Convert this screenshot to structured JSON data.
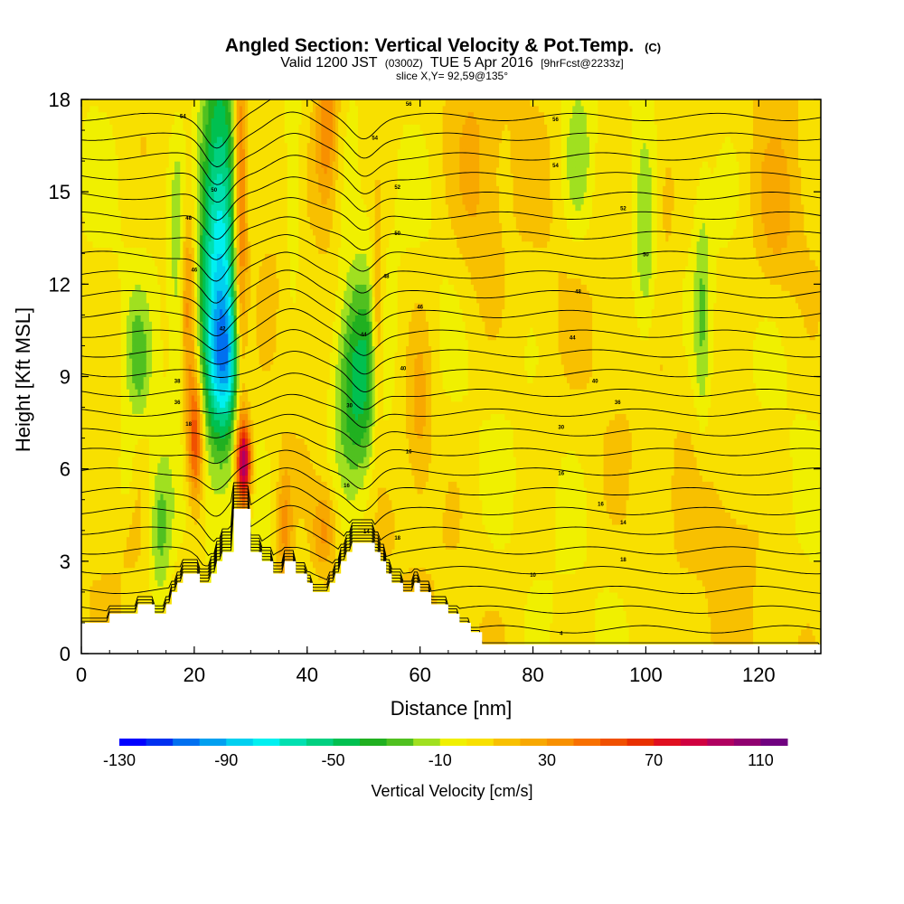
{
  "chart_data": {
    "type": "heatmap",
    "title": "Angled Section: Vertical Velocity & Pot.Temp.",
    "title_unit": "(C)",
    "subtitle_prefix": "Valid 1200 JST",
    "subtitle_utc": "(0300Z)",
    "subtitle_date": "TUE 5 Apr 2016",
    "subtitle_fcst": "[9hrFcst@2233z]",
    "slice_label": "slice X,Y= 92,59@135°",
    "xlabel": "Distance [nm]",
    "ylabel": "Height [Kft MSL]",
    "xlim": [
      0,
      131
    ],
    "ylim": [
      0,
      18
    ],
    "x_ticks": [
      "0",
      "20",
      "40",
      "60",
      "80",
      "100",
      "120"
    ],
    "y_ticks": [
      "0",
      "3",
      "6",
      "9",
      "12",
      "15",
      "18"
    ],
    "colorbar": {
      "label": "Vertical Velocity [cm/s]",
      "tick_labels": [
        "-130",
        "-90",
        "-50",
        "-10",
        "30",
        "70",
        "110"
      ],
      "min": -130,
      "max": 120,
      "step": 10,
      "colors": [
        "#0000ff",
        "#0030f0",
        "#0070f0",
        "#00a0f0",
        "#00d0f0",
        "#00f0f0",
        "#00e0b0",
        "#00d080",
        "#00c050",
        "#20b020",
        "#50c020",
        "#a0e020",
        "#f0f000",
        "#f8e000",
        "#f8c000",
        "#f8a800",
        "#f89000",
        "#f87000",
        "#f05000",
        "#e83000",
        "#e01020",
        "#d00040",
        "#b00060",
        "#900070",
        "#700080"
      ]
    },
    "terrain_kft": [
      [
        0,
        1.0
      ],
      [
        5,
        1.0
      ],
      [
        5,
        1.3
      ],
      [
        10,
        1.3
      ],
      [
        10,
        1.6
      ],
      [
        13,
        1.6
      ],
      [
        13,
        1.3
      ],
      [
        15,
        1.3
      ],
      [
        15,
        1.6
      ],
      [
        16,
        1.6
      ],
      [
        16,
        2.0
      ],
      [
        17,
        2.0
      ],
      [
        17,
        2.3
      ],
      [
        18,
        2.3
      ],
      [
        18,
        2.6
      ],
      [
        21,
        2.6
      ],
      [
        21,
        2.3
      ],
      [
        23,
        2.3
      ],
      [
        23,
        2.6
      ],
      [
        24,
        2.6
      ],
      [
        24,
        3.0
      ],
      [
        25,
        3.0
      ],
      [
        25,
        3.3
      ],
      [
        27,
        3.3
      ],
      [
        27,
        4.7
      ],
      [
        30,
        4.7
      ],
      [
        30,
        3.3
      ],
      [
        32,
        3.3
      ],
      [
        32,
        3.0
      ],
      [
        34,
        3.0
      ],
      [
        34,
        2.6
      ],
      [
        36,
        2.6
      ],
      [
        36,
        3.0
      ],
      [
        38,
        3.0
      ],
      [
        38,
        2.6
      ],
      [
        40,
        2.6
      ],
      [
        40,
        2.3
      ],
      [
        41,
        2.3
      ],
      [
        41,
        2.0
      ],
      [
        44,
        2.0
      ],
      [
        44,
        2.3
      ],
      [
        45,
        2.3
      ],
      [
        45,
        2.6
      ],
      [
        46,
        2.6
      ],
      [
        46,
        3.0
      ],
      [
        47,
        3.0
      ],
      [
        47,
        3.3
      ],
      [
        48,
        3.3
      ],
      [
        48,
        3.6
      ],
      [
        52,
        3.6
      ],
      [
        52,
        3.3
      ],
      [
        53,
        3.3
      ],
      [
        53,
        3.0
      ],
      [
        54,
        3.0
      ],
      [
        54,
        2.6
      ],
      [
        55,
        2.6
      ],
      [
        55,
        2.3
      ],
      [
        57,
        2.3
      ],
      [
        57,
        2.0
      ],
      [
        59,
        2.0
      ],
      [
        59,
        2.3
      ],
      [
        60,
        2.3
      ],
      [
        60,
        2.0
      ],
      [
        62,
        2.0
      ],
      [
        62,
        1.6
      ],
      [
        65,
        1.6
      ],
      [
        65,
        1.3
      ],
      [
        67,
        1.3
      ],
      [
        67,
        1.0
      ],
      [
        69,
        1.0
      ],
      [
        69,
        0.7
      ],
      [
        71,
        0.7
      ],
      [
        71,
        0.3
      ],
      [
        131,
        0.3
      ],
      [
        131,
        0
      ]
    ],
    "velocity_features": [
      {
        "x": 24.5,
        "z": 13.5,
        "sx": 2.6,
        "sz": 4.5,
        "w": -85
      },
      {
        "x": 25.5,
        "z": 9.5,
        "sx": 2.0,
        "sz": 1.5,
        "w": -50
      },
      {
        "x": 28.2,
        "z": 14.0,
        "sx": 0.9,
        "sz": 5.0,
        "w": 55
      },
      {
        "x": 28.8,
        "z": 6.2,
        "sx": 0.9,
        "sz": 1.0,
        "w": 95
      },
      {
        "x": 20.2,
        "z": 7.0,
        "sx": 1.0,
        "sz": 1.5,
        "w": 60
      },
      {
        "x": 19.0,
        "z": 11.5,
        "sx": 1.0,
        "sz": 2.5,
        "w": 35
      },
      {
        "x": 49.0,
        "z": 8.8,
        "sx": 3.0,
        "sz": 2.5,
        "w": -55
      },
      {
        "x": 52.5,
        "z": 10.5,
        "sx": 0.8,
        "sz": 2.5,
        "w": 35
      },
      {
        "x": 43.5,
        "z": 17.0,
        "sx": 1.5,
        "sz": 2.0,
        "w": 40
      },
      {
        "x": 43.0,
        "z": 4.0,
        "sx": 1.5,
        "sz": 1.0,
        "w": 30
      },
      {
        "x": 14.0,
        "z": 4.0,
        "sx": 1.5,
        "sz": 1.8,
        "w": -30
      },
      {
        "x": 10.0,
        "z": 9.5,
        "sx": 1.5,
        "sz": 1.5,
        "w": -25
      },
      {
        "x": 8.0,
        "z": 6.0,
        "sx": 1.0,
        "sz": 1.0,
        "w": -15
      },
      {
        "x": 17.0,
        "z": 13.0,
        "sx": 1.0,
        "sz": 3.0,
        "w": -20
      },
      {
        "x": 37.5,
        "z": 15.5,
        "sx": 1.0,
        "sz": 2.5,
        "w": -20
      },
      {
        "x": 100.0,
        "z": 13.0,
        "sx": 1.5,
        "sz": 2.5,
        "w": -25
      },
      {
        "x": 110.0,
        "z": 11.0,
        "sx": 1.0,
        "sz": 3.0,
        "w": -20
      },
      {
        "x": 88.0,
        "z": 16.0,
        "sx": 2.0,
        "sz": 2.0,
        "w": -20
      },
      {
        "x": 70.0,
        "z": 15.0,
        "sx": 3.0,
        "sz": 3.0,
        "w": 15
      },
      {
        "x": 103.0,
        "z": 15.0,
        "sx": 2.0,
        "sz": 2.0,
        "w": 15
      },
      {
        "x": 60.0,
        "z": 8.0,
        "sx": 1.5,
        "sz": 2.0,
        "w": 20
      },
      {
        "x": 36.0,
        "z": 4.0,
        "sx": 1.0,
        "sz": 1.5,
        "w": 30
      },
      {
        "x": 123.0,
        "z": 14.0,
        "sx": 3.0,
        "sz": 2.0,
        "w": 18
      },
      {
        "x": 115.0,
        "z": 4.0,
        "sx": 3.0,
        "sz": 2.0,
        "w": 8
      }
    ],
    "theta_contours_C": [
      4,
      6,
      8,
      10,
      12,
      14,
      16,
      18,
      20,
      22,
      24,
      26,
      28,
      30,
      32,
      34,
      36,
      38,
      40,
      42,
      44,
      46,
      48,
      50,
      52,
      54,
      56,
      58
    ],
    "contour_labels": [
      {
        "x": 18.0,
        "z": 17.4,
        "text": "54"
      },
      {
        "x": 58.0,
        "z": 17.8,
        "text": "56"
      },
      {
        "x": 52.0,
        "z": 16.7,
        "text": "54"
      },
      {
        "x": 84.0,
        "z": 17.3,
        "text": "56"
      },
      {
        "x": 84.0,
        "z": 15.8,
        "text": "54"
      },
      {
        "x": 23.5,
        "z": 15.0,
        "text": "50"
      },
      {
        "x": 56.0,
        "z": 15.1,
        "text": "52"
      },
      {
        "x": 19.0,
        "z": 14.1,
        "text": "48"
      },
      {
        "x": 96.0,
        "z": 14.4,
        "text": "52"
      },
      {
        "x": 56.0,
        "z": 13.6,
        "text": "50"
      },
      {
        "x": 100.0,
        "z": 12.9,
        "text": "50"
      },
      {
        "x": 20.0,
        "z": 12.4,
        "text": "46"
      },
      {
        "x": 54.0,
        "z": 12.2,
        "text": "48"
      },
      {
        "x": 88.0,
        "z": 11.7,
        "text": "48"
      },
      {
        "x": 60.0,
        "z": 11.2,
        "text": "46"
      },
      {
        "x": 25.0,
        "z": 10.5,
        "text": "42"
      },
      {
        "x": 50.0,
        "z": 10.3,
        "text": "44"
      },
      {
        "x": 87.0,
        "z": 10.2,
        "text": "44"
      },
      {
        "x": 57.0,
        "z": 9.2,
        "text": "40"
      },
      {
        "x": 91.0,
        "z": 8.8,
        "text": "40"
      },
      {
        "x": 17.0,
        "z": 8.8,
        "text": "38"
      },
      {
        "x": 17.0,
        "z": 8.1,
        "text": "36"
      },
      {
        "x": 95.0,
        "z": 8.1,
        "text": "36"
      },
      {
        "x": 47.5,
        "z": 8.0,
        "text": "30"
      },
      {
        "x": 85.0,
        "z": 7.3,
        "text": "30"
      },
      {
        "x": 19.0,
        "z": 7.4,
        "text": "18"
      },
      {
        "x": 58.0,
        "z": 6.5,
        "text": "16"
      },
      {
        "x": 85.0,
        "z": 5.8,
        "text": "16"
      },
      {
        "x": 47.0,
        "z": 5.4,
        "text": "16"
      },
      {
        "x": 92.0,
        "z": 4.8,
        "text": "16"
      },
      {
        "x": 96.0,
        "z": 4.2,
        "text": "14"
      },
      {
        "x": 56.0,
        "z": 3.7,
        "text": "18"
      },
      {
        "x": 96.0,
        "z": 3.0,
        "text": "18"
      },
      {
        "x": 80.0,
        "z": 2.5,
        "text": "10"
      },
      {
        "x": 50.5,
        "z": 3.9,
        "text": "14"
      },
      {
        "x": 85.0,
        "z": 0.6,
        "text": "4"
      }
    ]
  }
}
